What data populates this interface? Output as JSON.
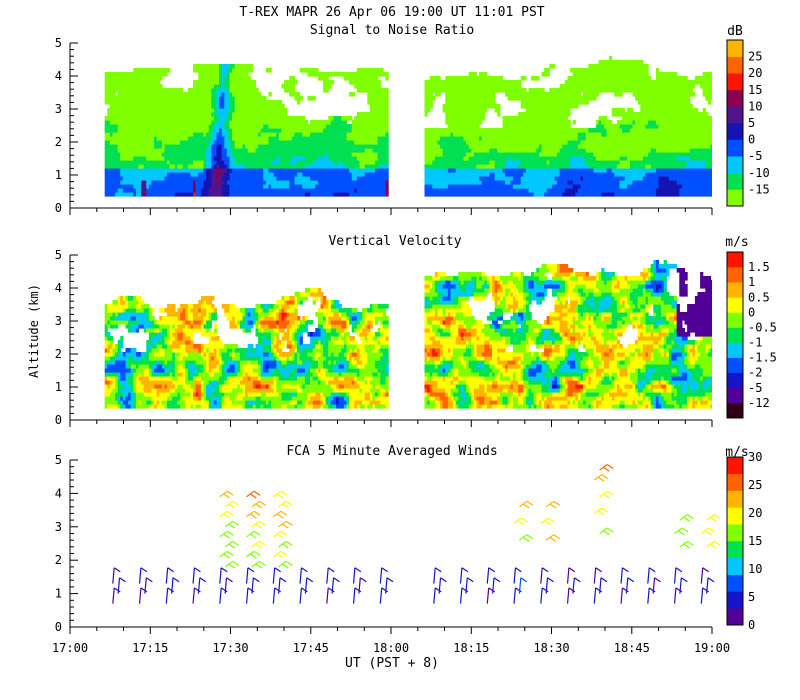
{
  "header": {
    "title": "T-REX  MAPR 26 Apr 06  19:00 UT  11:01  PST"
  },
  "xaxis": {
    "label": "UT  (PST + 8)",
    "ticks": [
      "17:00",
      "17:15",
      "17:30",
      "17:45",
      "18:00",
      "18:15",
      "18:30",
      "18:45",
      "19:00"
    ],
    "range_min": [
      0,
      120
    ]
  },
  "yaxis": {
    "label": "Altitude (km)",
    "ticks": [
      "0",
      "1",
      "2",
      "3",
      "4",
      "5"
    ],
    "range_km": [
      0,
      5
    ]
  },
  "colors": {
    "snr": [
      "#80ff00",
      "#00e050",
      "#00c8ff",
      "#0050ff",
      "#1414b4",
      "#50148c",
      "#8c0050",
      "#ff1400",
      "#ff6400",
      "#ffb400"
    ],
    "vel": [
      "#320014",
      "#500096",
      "#1414c8",
      "#0050ff",
      "#00c8ff",
      "#00e050",
      "#80ff00",
      "#ffff00",
      "#ffb400",
      "#ff6400",
      "#ff1400"
    ],
    "wind": [
      "#500096",
      "#1414c8",
      "#0050ff",
      "#00c8ff",
      "#00e050",
      "#80ff00",
      "#ffff00",
      "#ffb400",
      "#ff6400",
      "#ff1400"
    ]
  },
  "chart_data": [
    {
      "type": "heatmap",
      "title": "Signal to Noise Ratio",
      "xlabel": "UT  (PST + 8)",
      "ylabel": "Altitude (km)",
      "xlim_min": [
        0,
        120
      ],
      "ylim": [
        0,
        5
      ],
      "colorbar": {
        "unit": "dB",
        "ticks": [
          "-15",
          "-10",
          "-5",
          "0",
          "5",
          "10",
          "15",
          "20",
          "25"
        ]
      },
      "data_gap_min": [
        59,
        66
      ],
      "description_of_levels": "strongest echoes (5-20 dB) below 1 km; enhanced column near 17:30-17:35 reaching 4 km"
    },
    {
      "type": "heatmap",
      "title": "Vertical Velocity",
      "xlabel": "UT  (PST + 8)",
      "ylabel": "Altitude (km)",
      "xlim_min": [
        0,
        120
      ],
      "ylim": [
        0,
        5
      ],
      "colorbar": {
        "unit": "m/s",
        "ticks": [
          "-12",
          "-5",
          "-2",
          "-1.5",
          "-1",
          "-0.5",
          "0",
          "0.5",
          "1",
          "1.5"
        ]
      },
      "data_gap_min": [
        59,
        66
      ]
    },
    {
      "type": "scatter",
      "title": "FCA 5 Minute Averaged Winds",
      "xlabel": "UT  (PST + 8)",
      "ylabel": "Altitude (km)",
      "xlim_min": [
        0,
        120
      ],
      "ylim": [
        0,
        5
      ],
      "colorbar": {
        "unit": "m/s",
        "ticks": [
          "0",
          "5",
          "10",
          "15",
          "20",
          "25",
          "30"
        ]
      },
      "barb_times_min": [
        8,
        13,
        18,
        23,
        28,
        33,
        38,
        43,
        48,
        53,
        58,
        68,
        73,
        78,
        83,
        88,
        93,
        98,
        103,
        108,
        113,
        118
      ]
    }
  ]
}
